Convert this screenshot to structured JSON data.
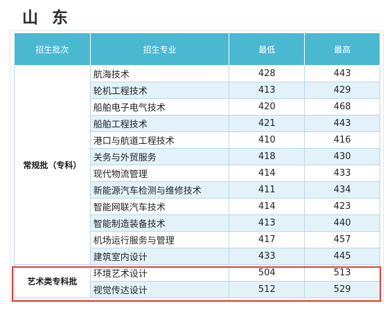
{
  "title": "山 东",
  "table": {
    "headers": {
      "batch": "招生批次",
      "major": "招生专业",
      "min": "最低",
      "max": "最高"
    },
    "groups": [
      {
        "batch": "常规批（专科）",
        "rows": [
          {
            "major": "航海技术",
            "min": "428",
            "max": "443"
          },
          {
            "major": "轮机工程技术",
            "min": "413",
            "max": "429"
          },
          {
            "major": "船舶电子电气技术",
            "min": "420",
            "max": "468"
          },
          {
            "major": "船舶工程技术",
            "min": "421",
            "max": "443"
          },
          {
            "major": "港口与航道工程技术",
            "min": "410",
            "max": "416"
          },
          {
            "major": "关务与外贸服务",
            "min": "418",
            "max": "430"
          },
          {
            "major": "现代物流管理",
            "min": "414",
            "max": "433"
          },
          {
            "major": "新能源汽车检测与维修技术",
            "min": "411",
            "max": "434"
          },
          {
            "major": "智能网联汽车技术",
            "min": "414",
            "max": "423"
          },
          {
            "major": "智能制造装备技术",
            "min": "413",
            "max": "440"
          },
          {
            "major": "机场运行服务与管理",
            "min": "417",
            "max": "457"
          },
          {
            "major": "建筑室内设计",
            "min": "433",
            "max": "445"
          }
        ]
      },
      {
        "batch": "艺术类专科批",
        "rows": [
          {
            "major": "环境艺术设计",
            "min": "504",
            "max": "513"
          },
          {
            "major": "视觉传达设计",
            "min": "512",
            "max": "529"
          }
        ]
      }
    ]
  },
  "colors": {
    "header_bg": "#4ab8d0",
    "row_stripe": "#e2f2f8",
    "highlight_border": "#e53935"
  }
}
